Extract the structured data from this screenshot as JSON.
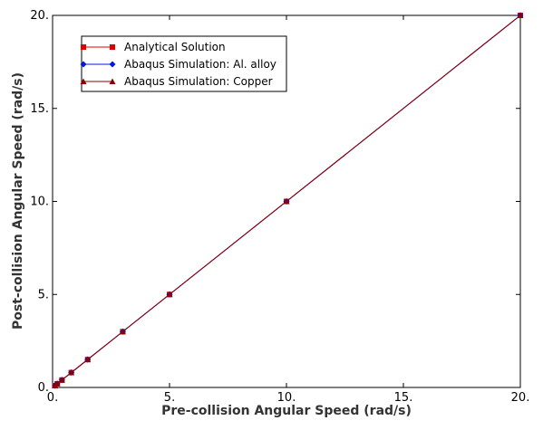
{
  "chart_data": {
    "type": "line",
    "xlabel": "Pre-collision Angular Speed (rad/s)",
    "ylabel": "Post-collision Angular Speed (rad/s)",
    "xlim": [
      0,
      20
    ],
    "ylim": [
      0,
      20
    ],
    "x_ticks": [
      0,
      5,
      10,
      15,
      20
    ],
    "y_ticks": [
      0,
      5,
      10,
      15,
      20
    ],
    "x_tick_labels": [
      "0.",
      "5.",
      "10.",
      "15.",
      "20."
    ],
    "y_tick_labels": [
      "0.",
      "5.",
      "10.",
      "15.",
      "20."
    ],
    "grid": false,
    "legend_position": "top-left",
    "series": [
      {
        "name": "Analytical Solution",
        "marker": "square",
        "color": "#e00000",
        "x": [
          0.1,
          0.2,
          0.4,
          0.8,
          1.5,
          3,
          5,
          10,
          20
        ],
        "y": [
          0.1,
          0.2,
          0.4,
          0.8,
          1.5,
          3,
          5,
          10,
          20
        ]
      },
      {
        "name": "Abaqus Simulation: Al. alloy",
        "marker": "diamond",
        "color": "#0018e0",
        "x": [
          0.1,
          0.2,
          0.4,
          0.8,
          1.5,
          3,
          5,
          10,
          20
        ],
        "y": [
          0.1,
          0.2,
          0.4,
          0.8,
          1.5,
          3,
          5,
          10,
          20
        ]
      },
      {
        "name": "Abaqus Simulation: Copper",
        "marker": "triangle",
        "color": "#8b0000",
        "x": [
          0.1,
          0.2,
          0.4,
          0.8,
          1.5,
          3,
          5,
          10,
          20
        ],
        "y": [
          0.1,
          0.2,
          0.4,
          0.8,
          1.5,
          3,
          5,
          10,
          20
        ]
      }
    ]
  }
}
